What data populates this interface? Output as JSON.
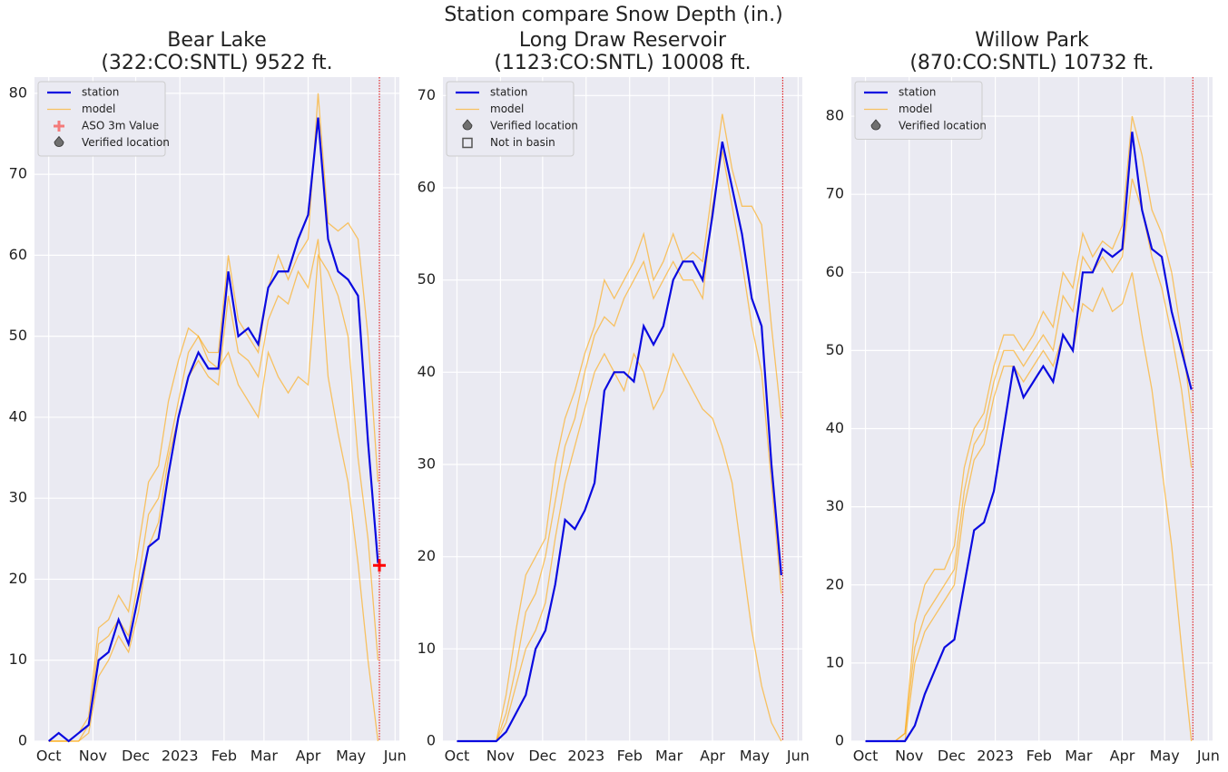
{
  "title": "Station compare Snow Depth (in.)",
  "chart_data": [
    {
      "type": "line",
      "title": [
        "Bear Lake",
        "(322:CO:SNTL) 9522 ft."
      ],
      "x": [
        0,
        7,
        14,
        21,
        28,
        35,
        42,
        49,
        56,
        63,
        70,
        77,
        84,
        91,
        98,
        105,
        112,
        119,
        126,
        133,
        140,
        147,
        154,
        161,
        168,
        175,
        182,
        189,
        196,
        203,
        210,
        217,
        224,
        231
      ],
      "series": [
        {
          "name": "station",
          "color": "#0a0ae0",
          "values": [
            0,
            1,
            0,
            1,
            2,
            10,
            11,
            15,
            12,
            18,
            24,
            25,
            33,
            40,
            45,
            48,
            46,
            46,
            58,
            50,
            51,
            49,
            56,
            58,
            58,
            62,
            65,
            77,
            62,
            58,
            57,
            55,
            37,
            22
          ]
        },
        {
          "name": "model",
          "color": "#ffa500",
          "values": [
            0,
            0,
            0,
            1,
            3,
            14,
            15,
            18,
            16,
            24,
            32,
            34,
            42,
            47,
            51,
            50,
            48,
            48,
            60,
            52,
            50,
            48,
            56,
            60,
            57,
            60,
            62,
            80,
            64,
            63,
            64,
            62,
            50,
            32
          ]
        },
        {
          "name": "model",
          "color": "#ffa500",
          "values": [
            0,
            0,
            0,
            0,
            2,
            12,
            13,
            15,
            13,
            20,
            28,
            30,
            36,
            42,
            48,
            50,
            47,
            46,
            48,
            44,
            42,
            40,
            48,
            45,
            43,
            45,
            44,
            60,
            58,
            55,
            50,
            35,
            25,
            10
          ]
        },
        {
          "name": "model",
          "color": "#ffa500",
          "values": [
            0,
            0,
            0,
            0,
            1,
            8,
            10,
            13,
            11,
            16,
            24,
            27,
            35,
            40,
            45,
            47,
            45,
            44,
            55,
            48,
            47,
            45,
            52,
            55,
            54,
            58,
            56,
            62,
            45,
            38,
            32,
            22,
            10,
            0
          ]
        }
      ],
      "points": [
        {
          "name": "ASO 3m Value",
          "x": 232,
          "value": 21.7,
          "color": "#ff0000",
          "legend_color": "#f47a7a"
        }
      ],
      "legend_only": [
        {
          "name": "Verified location",
          "symbol": "drop",
          "color": "#707070"
        }
      ],
      "vline": 232,
      "vline_color": "#e00000",
      "xlim": [
        -10,
        246
      ],
      "xticks": [
        {
          "value": 0,
          "label": "Oct"
        },
        {
          "value": 31,
          "label": "Nov"
        },
        {
          "value": 61,
          "label": "Dec"
        },
        {
          "value": 92,
          "label": "2023"
        },
        {
          "value": 123,
          "label": "Feb"
        },
        {
          "value": 151,
          "label": "Mar"
        },
        {
          "value": 182,
          "label": "Apr"
        },
        {
          "value": 212,
          "label": "May"
        },
        {
          "value": 243,
          "label": "Jun"
        }
      ],
      "ylim": [
        0,
        82
      ],
      "yticks": [
        0,
        10,
        20,
        30,
        40,
        50,
        60,
        70,
        80
      ],
      "grid": true,
      "legend": "upper left"
    },
    {
      "type": "line",
      "title": [
        "Long Draw Reservoir",
        "(1123:CO:SNTL) 10008 ft."
      ],
      "x": [
        0,
        7,
        14,
        21,
        28,
        35,
        42,
        49,
        56,
        63,
        70,
        77,
        84,
        91,
        98,
        105,
        112,
        119,
        126,
        133,
        140,
        147,
        154,
        161,
        168,
        175,
        182,
        189,
        196,
        203,
        210,
        217,
        224,
        231
      ],
      "series": [
        {
          "name": "station",
          "color": "#0a0ae0",
          "values": [
            0,
            0,
            0,
            0,
            0,
            1,
            3,
            5,
            10,
            12,
            17,
            24,
            23,
            25,
            28,
            38,
            40,
            40,
            39,
            45,
            43,
            45,
            50,
            52,
            52,
            50,
            57,
            65,
            60,
            55,
            48,
            45,
            30,
            18
          ]
        },
        {
          "name": "model",
          "color": "#ffa500",
          "values": [
            0,
            0,
            0,
            0,
            0,
            5,
            12,
            18,
            20,
            22,
            30,
            35,
            38,
            42,
            45,
            50,
            48,
            50,
            52,
            55,
            50,
            52,
            55,
            52,
            53,
            52,
            60,
            68,
            62,
            58,
            58,
            56,
            45,
            35
          ]
        },
        {
          "name": "model",
          "color": "#ffa500",
          "values": [
            0,
            0,
            0,
            0,
            0,
            3,
            8,
            14,
            16,
            20,
            26,
            32,
            35,
            40,
            44,
            46,
            45,
            48,
            50,
            52,
            48,
            50,
            52,
            50,
            50,
            48,
            58,
            64,
            58,
            52,
            45,
            40,
            28,
            16
          ]
        },
        {
          "name": "model",
          "color": "#ffa500",
          "values": [
            0,
            0,
            0,
            0,
            0,
            2,
            6,
            10,
            12,
            15,
            22,
            28,
            32,
            36,
            40,
            42,
            40,
            38,
            42,
            40,
            36,
            38,
            42,
            40,
            38,
            36,
            35,
            32,
            28,
            20,
            12,
            6,
            2,
            0
          ]
        }
      ],
      "legend_only": [
        {
          "name": "Verified location",
          "symbol": "drop",
          "color": "#707070"
        },
        {
          "name": "Not in basin",
          "symbol": "square",
          "color": "#555555"
        }
      ],
      "vline": 232,
      "vline_color": "#e00000",
      "xlim": [
        -10,
        246
      ],
      "xticks": [
        {
          "value": 0,
          "label": "Oct"
        },
        {
          "value": 31,
          "label": "Nov"
        },
        {
          "value": 61,
          "label": "Dec"
        },
        {
          "value": 92,
          "label": "2023"
        },
        {
          "value": 123,
          "label": "Feb"
        },
        {
          "value": 151,
          "label": "Mar"
        },
        {
          "value": 182,
          "label": "Apr"
        },
        {
          "value": 212,
          "label": "May"
        },
        {
          "value": 243,
          "label": "Jun"
        }
      ],
      "ylim": [
        0,
        72
      ],
      "yticks": [
        0,
        10,
        20,
        30,
        40,
        50,
        60,
        70
      ],
      "grid": true,
      "legend": "upper left"
    },
    {
      "type": "line",
      "title": [
        "Willow Park",
        "(870:CO:SNTL) 10732 ft."
      ],
      "x": [
        0,
        7,
        14,
        21,
        28,
        35,
        42,
        49,
        56,
        63,
        70,
        77,
        84,
        91,
        98,
        105,
        112,
        119,
        126,
        133,
        140,
        147,
        154,
        161,
        168,
        175,
        182,
        189,
        196,
        203,
        210,
        217,
        224,
        231
      ],
      "series": [
        {
          "name": "station",
          "color": "#0a0ae0",
          "values": [
            0,
            0,
            0,
            0,
            0,
            2,
            6,
            9,
            12,
            13,
            20,
            27,
            28,
            32,
            40,
            48,
            44,
            46,
            48,
            46,
            52,
            50,
            60,
            60,
            63,
            62,
            63,
            78,
            68,
            63,
            62,
            55,
            50,
            45
          ]
        },
        {
          "name": "model",
          "color": "#ffa500",
          "values": [
            0,
            0,
            0,
            0,
            1,
            15,
            20,
            22,
            22,
            25,
            35,
            40,
            42,
            48,
            52,
            52,
            50,
            52,
            55,
            53,
            60,
            58,
            65,
            62,
            64,
            63,
            66,
            80,
            75,
            68,
            65,
            60,
            52,
            42
          ]
        },
        {
          "name": "model",
          "color": "#ffa500",
          "values": [
            0,
            0,
            0,
            0,
            1,
            12,
            16,
            18,
            20,
            22,
            32,
            38,
            40,
            46,
            50,
            50,
            48,
            50,
            52,
            50,
            57,
            55,
            62,
            60,
            62,
            60,
            62,
            72,
            68,
            62,
            58,
            52,
            45,
            35
          ]
        },
        {
          "name": "model",
          "color": "#ffa500",
          "values": [
            0,
            0,
            0,
            0,
            0,
            10,
            14,
            16,
            18,
            20,
            30,
            36,
            38,
            44,
            48,
            48,
            46,
            48,
            50,
            48,
            52,
            50,
            56,
            55,
            58,
            55,
            56,
            60,
            52,
            45,
            35,
            25,
            12,
            0
          ]
        }
      ],
      "legend_only": [
        {
          "name": "Verified location",
          "symbol": "drop",
          "color": "#707070"
        }
      ],
      "vline": 232,
      "vline_color": "#e00000",
      "xlim": [
        -10,
        246
      ],
      "xticks": [
        {
          "value": 0,
          "label": "Oct"
        },
        {
          "value": 31,
          "label": "Nov"
        },
        {
          "value": 61,
          "label": "Dec"
        },
        {
          "value": 92,
          "label": "2023"
        },
        {
          "value": 123,
          "label": "Feb"
        },
        {
          "value": 151,
          "label": "Mar"
        },
        {
          "value": 182,
          "label": "Apr"
        },
        {
          "value": 212,
          "label": "May"
        },
        {
          "value": 243,
          "label": "Jun"
        }
      ],
      "ylim": [
        0,
        85
      ],
      "yticks": [
        0,
        10,
        20,
        30,
        40,
        50,
        60,
        70,
        80
      ],
      "grid": true,
      "legend": "upper left"
    }
  ]
}
